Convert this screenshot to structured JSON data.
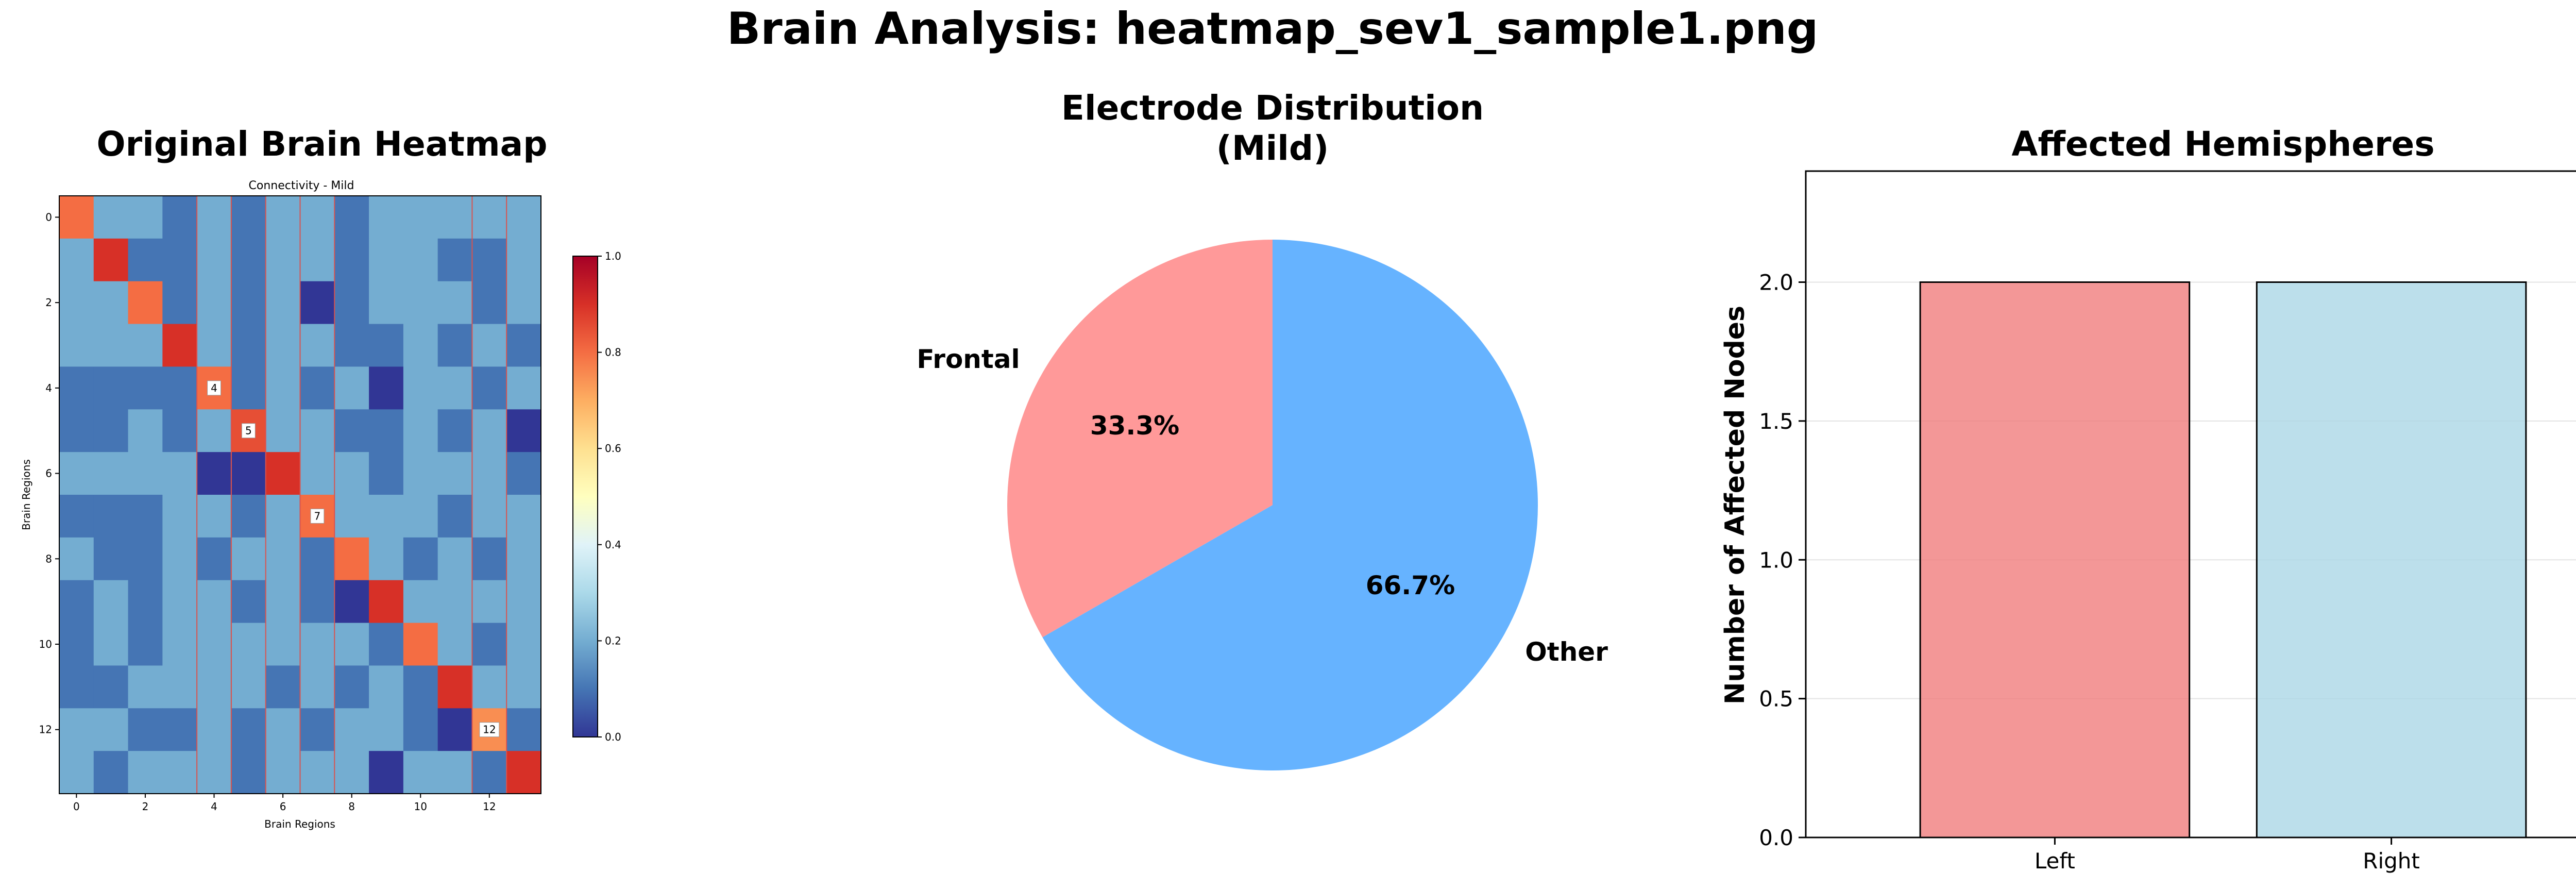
{
  "figure": {
    "suptitle": "Brain Analysis: heatmap_sev1_sample1.png"
  },
  "chart_data": [
    {
      "type": "heatmap",
      "title": "Original Brain Heatmap",
      "image_title": "Connectivity - Mild",
      "xlabel": "Brain Regions",
      "ylabel": "Brain Regions",
      "x_ticks": [
        0,
        2,
        4,
        6,
        8,
        10,
        12
      ],
      "y_ticks": [
        0,
        2,
        4,
        6,
        8,
        10,
        12
      ],
      "colorbar": {
        "min": 0.0,
        "max": 1.0,
        "ticks": [
          "0.0",
          "0.2",
          "0.4",
          "0.6",
          "0.8",
          "1.0"
        ],
        "colormap": "RdYlBu_r"
      },
      "matrix": [
        [
          0.8,
          0.2,
          0.2,
          0.1,
          0.2,
          0.1,
          0.2,
          0.2,
          0.1,
          0.2,
          0.2,
          0.2,
          0.2,
          0.2
        ],
        [
          0.2,
          0.9,
          0.1,
          0.1,
          0.2,
          0.1,
          0.2,
          0.2,
          0.1,
          0.2,
          0.2,
          0.1,
          0.1,
          0.2
        ],
        [
          0.2,
          0.2,
          0.8,
          0.1,
          0.2,
          0.1,
          0.2,
          0.0,
          0.1,
          0.2,
          0.2,
          0.2,
          0.1,
          0.2
        ],
        [
          0.2,
          0.2,
          0.2,
          0.9,
          0.2,
          0.1,
          0.2,
          0.2,
          0.1,
          0.1,
          0.2,
          0.1,
          0.2,
          0.1
        ],
        [
          0.1,
          0.1,
          0.1,
          0.1,
          0.8,
          0.1,
          0.2,
          0.1,
          0.2,
          0.0,
          0.2,
          0.2,
          0.1,
          0.2
        ],
        [
          0.1,
          0.1,
          0.2,
          0.1,
          0.2,
          0.85,
          0.2,
          0.2,
          0.1,
          0.1,
          0.2,
          0.1,
          0.2,
          0.0
        ],
        [
          0.2,
          0.2,
          0.2,
          0.2,
          0.0,
          0.0,
          0.9,
          0.2,
          0.2,
          0.1,
          0.2,
          0.2,
          0.2,
          0.1
        ],
        [
          0.1,
          0.1,
          0.1,
          0.2,
          0.2,
          0.1,
          0.2,
          0.8,
          0.2,
          0.2,
          0.2,
          0.1,
          0.2,
          0.2
        ],
        [
          0.2,
          0.1,
          0.1,
          0.2,
          0.1,
          0.2,
          0.2,
          0.1,
          0.8,
          0.2,
          0.1,
          0.2,
          0.1,
          0.2
        ],
        [
          0.1,
          0.2,
          0.1,
          0.2,
          0.2,
          0.1,
          0.2,
          0.1,
          0.0,
          0.9,
          0.2,
          0.2,
          0.2,
          0.2
        ],
        [
          0.1,
          0.2,
          0.1,
          0.2,
          0.2,
          0.2,
          0.2,
          0.2,
          0.2,
          0.1,
          0.8,
          0.2,
          0.1,
          0.2
        ],
        [
          0.1,
          0.1,
          0.2,
          0.2,
          0.2,
          0.2,
          0.1,
          0.2,
          0.1,
          0.2,
          0.1,
          0.9,
          0.2,
          0.2
        ],
        [
          0.2,
          0.2,
          0.1,
          0.1,
          0.2,
          0.1,
          0.2,
          0.1,
          0.2,
          0.2,
          0.1,
          0.0,
          0.75,
          0.1
        ],
        [
          0.2,
          0.1,
          0.2,
          0.2,
          0.2,
          0.1,
          0.2,
          0.2,
          0.2,
          0.0,
          0.2,
          0.2,
          0.1,
          0.9
        ]
      ],
      "highlighted_columns": [
        4,
        5,
        7,
        12
      ],
      "cell_labels": [
        {
          "row": 4,
          "col": 4,
          "text": "4"
        },
        {
          "row": 5,
          "col": 5,
          "text": "5"
        },
        {
          "row": 7,
          "col": 7,
          "text": "7"
        },
        {
          "row": 12,
          "col": 12,
          "text": "12"
        }
      ]
    },
    {
      "type": "pie",
      "title_lines": [
        "Electrode Distribution",
        "(Mild)"
      ],
      "slices": [
        {
          "label": "Frontal",
          "value": 33.3,
          "pct_label": "33.3%",
          "color": "#ff9999"
        },
        {
          "label": "Other",
          "value": 66.7,
          "pct_label": "66.7%",
          "color": "#66b3ff"
        }
      ],
      "start_angle_deg": 90,
      "direction": "counterclockwise"
    },
    {
      "type": "bar",
      "title": "Affected Hemispheres",
      "categories": [
        "Left",
        "Right"
      ],
      "values": [
        2,
        2
      ],
      "colors": [
        "#f08080",
        "#add8e6"
      ],
      "xlabel": "",
      "ylabel": "Number of Affected Nodes",
      "ylim": [
        0,
        2.4
      ],
      "y_ticks": [
        "0.0",
        "0.5",
        "1.0",
        "1.5",
        "2.0"
      ],
      "grid": "y"
    }
  ]
}
